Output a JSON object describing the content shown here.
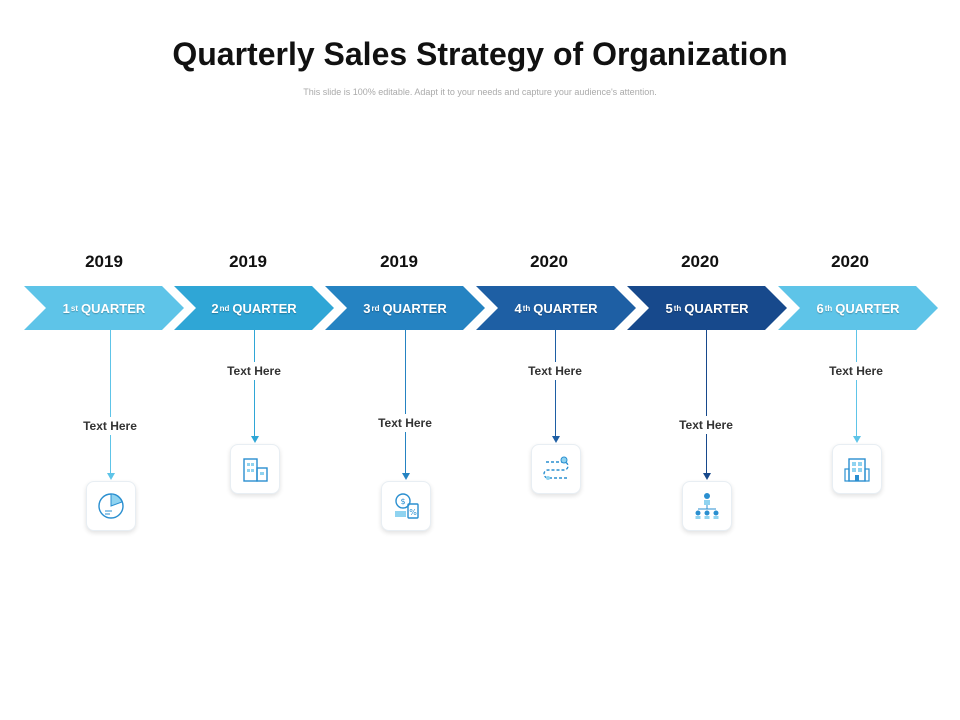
{
  "title": "Quarterly Sales Strategy of Organization",
  "subtitle": "This slide is 100% editable. Adapt it to your needs and capture your audience's attention.",
  "steps": [
    {
      "year": "2019",
      "num": "1",
      "ord": "st",
      "label": "QUARTER",
      "text": "Text Here",
      "color": "#5ec4e8",
      "icon": "pie-chart-icon"
    },
    {
      "year": "2019",
      "num": "2",
      "ord": "nd",
      "label": "QUARTER",
      "text": "Text Here",
      "color": "#2fa6d6",
      "icon": "buildings-icon"
    },
    {
      "year": "2019",
      "num": "3",
      "ord": "rd",
      "label": "QUARTER",
      "text": "Text Here",
      "color": "#2583c2",
      "icon": "price-tag-icon"
    },
    {
      "year": "2020",
      "num": "4",
      "ord": "th",
      "label": "QUARTER",
      "text": "Text Here",
      "color": "#1e5fa4",
      "icon": "roadmap-icon"
    },
    {
      "year": "2020",
      "num": "5",
      "ord": "th",
      "label": "QUARTER",
      "text": "Text Here",
      "color": "#17498c",
      "icon": "hierarchy-icon"
    },
    {
      "year": "2020",
      "num": "6",
      "ord": "th",
      "label": "QUARTER",
      "text": "Text Here",
      "color": "#5ec4e8",
      "icon": "office-building-icon"
    }
  ]
}
